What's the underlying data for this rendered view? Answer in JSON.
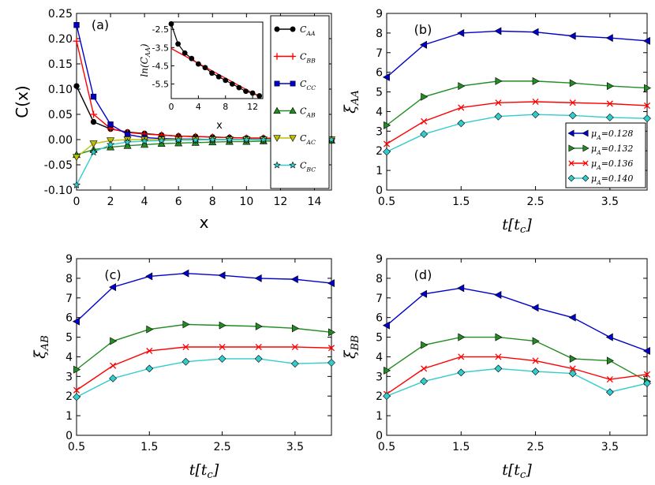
{
  "chart_data": [
    {
      "id": "a",
      "type": "line",
      "panel_label": "(a)",
      "xlabel": "x",
      "ylabel": "C(x)",
      "xlim": [
        0,
        15
      ],
      "ylim": [
        -0.1,
        0.25
      ],
      "xticks": [
        0,
        2,
        4,
        6,
        8,
        10,
        12,
        14
      ],
      "yticks": [
        -0.1,
        -0.05,
        0.0,
        0.05,
        0.1,
        0.15,
        0.2,
        0.25
      ],
      "ytick_labels": [
        "-0.10",
        "-0.05",
        "0.00",
        "0.05",
        "0.10",
        "0.15",
        "0.20",
        "0.25"
      ],
      "x": [
        0,
        1,
        2,
        3,
        4,
        5,
        6,
        7,
        8,
        9,
        10,
        11,
        12,
        13,
        14,
        15
      ],
      "series": [
        {
          "name": "C_AA",
          "color": "#000000",
          "marker": "circle",
          "values": [
            0.106,
            0.035,
            0.021,
            0.015,
            0.012,
            0.009,
            0.007,
            0.006,
            0.005,
            0.004,
            0.003,
            0.003,
            0.002,
            0.002,
            0.002,
            0.001
          ]
        },
        {
          "name": "C_BB",
          "color": "#ff0000",
          "marker": "plus",
          "values": [
            0.195,
            0.05,
            0.022,
            0.014,
            0.011,
            0.009,
            0.007,
            0.006,
            0.005,
            0.004,
            0.003,
            0.003,
            0.002,
            0.002,
            0.002,
            0.001
          ]
        },
        {
          "name": "C_CC",
          "color": "#0000cc",
          "marker": "square",
          "values": [
            0.227,
            0.085,
            0.03,
            0.01,
            0.004,
            0.002,
            0.001,
            0.001,
            0.0,
            0.0,
            0.0,
            0.0,
            0.0,
            0.0,
            0.0,
            0.0
          ]
        },
        {
          "name": "C_AB",
          "color": "#228b22",
          "marker": "triangle-up",
          "values": [
            -0.03,
            -0.02,
            -0.015,
            -0.012,
            -0.01,
            -0.008,
            -0.007,
            -0.006,
            -0.005,
            -0.004,
            -0.004,
            -0.003,
            -0.003,
            -0.002,
            -0.002,
            -0.002
          ]
        },
        {
          "name": "C_AC",
          "color": "#bfbf00",
          "marker": "triangle-down",
          "values": [
            -0.035,
            -0.008,
            -0.002,
            0.0,
            0.0,
            0.0,
            0.0,
            0.0,
            0.0,
            0.0,
            0.0,
            0.0,
            0.0,
            0.0,
            0.0,
            0.0
          ]
        },
        {
          "name": "C_BC",
          "color": "#33cccc",
          "marker": "star",
          "values": [
            -0.09,
            -0.025,
            -0.01,
            -0.005,
            -0.003,
            -0.002,
            -0.001,
            -0.001,
            0.0,
            0.0,
            0.0,
            0.0,
            0.0,
            0.0,
            0.0,
            0.0
          ]
        }
      ],
      "legend": [
        {
          "main": "C",
          "sub": "AA"
        },
        {
          "main": "C",
          "sub": "BB"
        },
        {
          "main": "C",
          "sub": "CC"
        },
        {
          "main": "C",
          "sub": "AB"
        },
        {
          "main": "C",
          "sub": "AC"
        },
        {
          "main": "C",
          "sub": "BC"
        }
      ],
      "legend_position": "top-right",
      "inset": {
        "xlabel": "x",
        "ylabel": "ln(C_AA)",
        "ylabel_text": "ln(C",
        "ylabel_sub": "AA",
        "ylabel_close": ")",
        "xlim": [
          0,
          13.5
        ],
        "ylim": [
          -6.3,
          -2.1
        ],
        "xticks": [
          0,
          4,
          8,
          12
        ],
        "yticks": [
          -2.5,
          -3.5,
          -4.5,
          -5.5
        ],
        "ytick_labels": [
          "-2.5",
          "-3.5",
          "-4.5",
          "-5.5"
        ],
        "data_x": [
          0,
          1,
          2,
          3,
          4,
          5,
          6,
          7,
          8,
          9,
          10,
          11,
          12,
          13
        ],
        "data_y": [
          -2.2,
          -3.3,
          -3.8,
          -4.1,
          -4.4,
          -4.6,
          -4.9,
          -5.1,
          -5.3,
          -5.5,
          -5.7,
          -5.9,
          -6.0,
          -6.15
        ],
        "fit_x": [
          0,
          13
        ],
        "fit_y": [
          -3.55,
          -6.2
        ]
      }
    },
    {
      "id": "b",
      "type": "line",
      "panel_label": "(b)",
      "xlabel": "t[t_c]",
      "ylabel": "ξ_AA",
      "ylabel_main": "ξ",
      "ylabel_sub": "AA",
      "xlim": [
        0.5,
        4.0
      ],
      "ylim": [
        0,
        9
      ],
      "xticks": [
        0.5,
        1.5,
        2.5,
        3.5
      ],
      "xtick_labels": [
        "0.5",
        "1.5",
        "2.5",
        "3.5"
      ],
      "yticks": [
        0,
        1,
        2,
        3,
        4,
        5,
        6,
        7,
        8,
        9
      ],
      "x": [
        0.5,
        1.0,
        1.5,
        2.0,
        2.5,
        3.0,
        3.5,
        4.0
      ],
      "series": [
        {
          "name": "μ_A=0.128",
          "color": "#0000cc",
          "marker": "triangle-left",
          "values": [
            5.75,
            7.4,
            8.0,
            8.1,
            8.05,
            7.85,
            7.75,
            7.6
          ]
        },
        {
          "name": "μ_A=0.132",
          "color": "#228b22",
          "marker": "triangle-right",
          "values": [
            3.3,
            4.75,
            5.3,
            5.55,
            5.55,
            5.45,
            5.3,
            5.2
          ]
        },
        {
          "name": "μ_A=0.136",
          "color": "#ff0000",
          "marker": "x",
          "values": [
            2.35,
            3.5,
            4.2,
            4.45,
            4.5,
            4.45,
            4.4,
            4.3
          ]
        },
        {
          "name": "μ_A=0.140",
          "color": "#33cccc",
          "marker": "diamond",
          "values": [
            1.95,
            2.85,
            3.4,
            3.75,
            3.85,
            3.8,
            3.7,
            3.65
          ]
        }
      ],
      "legend": [
        {
          "main": "μ",
          "sub": "A",
          "rest": "=0.128"
        },
        {
          "main": "μ",
          "sub": "A",
          "rest": "=0.132"
        },
        {
          "main": "μ",
          "sub": "A",
          "rest": "=0.136"
        },
        {
          "main": "μ",
          "sub": "A",
          "rest": "=0.140"
        }
      ],
      "legend_position": "lower-right"
    },
    {
      "id": "c",
      "type": "line",
      "panel_label": "(c)",
      "xlabel": "t[t_c]",
      "ylabel": "ξ_AB",
      "ylabel_main": "ξ",
      "ylabel_sub": "AB",
      "xlim": [
        0.5,
        4.0
      ],
      "ylim": [
        0,
        9
      ],
      "xticks": [
        0.5,
        1.5,
        2.5,
        3.5
      ],
      "xtick_labels": [
        "0.5",
        "1.5",
        "2.5",
        "3.5"
      ],
      "yticks": [
        0,
        1,
        2,
        3,
        4,
        5,
        6,
        7,
        8,
        9
      ],
      "x": [
        0.5,
        1.0,
        1.5,
        2.0,
        2.5,
        3.0,
        3.5,
        4.0
      ],
      "series": [
        {
          "name": "μ_A=0.128",
          "color": "#0000cc",
          "marker": "triangle-left",
          "values": [
            5.8,
            7.55,
            8.1,
            8.25,
            8.15,
            8.0,
            7.95,
            7.75
          ]
        },
        {
          "name": "μ_A=0.132",
          "color": "#228b22",
          "marker": "triangle-right",
          "values": [
            3.35,
            4.8,
            5.4,
            5.65,
            5.6,
            5.55,
            5.45,
            5.25
          ]
        },
        {
          "name": "μ_A=0.136",
          "color": "#ff0000",
          "marker": "x",
          "values": [
            2.3,
            3.55,
            4.3,
            4.5,
            4.5,
            4.5,
            4.5,
            4.45
          ]
        },
        {
          "name": "μ_A=0.140",
          "color": "#33cccc",
          "marker": "diamond",
          "values": [
            1.95,
            2.9,
            3.4,
            3.75,
            3.9,
            3.9,
            3.65,
            3.7
          ]
        }
      ]
    },
    {
      "id": "d",
      "type": "line",
      "panel_label": "(d)",
      "xlabel": "t[t_c]",
      "ylabel": "ξ_BB",
      "ylabel_main": "ξ",
      "ylabel_sub": "BB",
      "xlim": [
        0.5,
        4.0
      ],
      "ylim": [
        0,
        9
      ],
      "xticks": [
        0.5,
        1.5,
        2.5,
        3.5
      ],
      "xtick_labels": [
        "0.5",
        "1.5",
        "2.5",
        "3.5"
      ],
      "yticks": [
        0,
        1,
        2,
        3,
        4,
        5,
        6,
        7,
        8,
        9
      ],
      "x": [
        0.5,
        1.0,
        1.5,
        2.0,
        2.5,
        3.0,
        3.5,
        4.0
      ],
      "series": [
        {
          "name": "μ_A=0.128",
          "color": "#0000cc",
          "marker": "triangle-left",
          "values": [
            5.6,
            7.2,
            7.5,
            7.15,
            6.5,
            6.0,
            5.0,
            4.3
          ]
        },
        {
          "name": "μ_A=0.132",
          "color": "#228b22",
          "marker": "triangle-right",
          "values": [
            3.3,
            4.6,
            5.0,
            5.0,
            4.8,
            3.9,
            3.8,
            2.75
          ]
        },
        {
          "name": "μ_A=0.136",
          "color": "#ff0000",
          "marker": "x",
          "values": [
            2.1,
            3.4,
            4.0,
            4.0,
            3.8,
            3.4,
            2.85,
            3.1
          ]
        },
        {
          "name": "μ_A=0.140",
          "color": "#33cccc",
          "marker": "diamond",
          "values": [
            2.0,
            2.75,
            3.2,
            3.4,
            3.25,
            3.15,
            2.2,
            2.65
          ]
        }
      ]
    }
  ],
  "xlabel_t": {
    "main": "t[t",
    "sub": "c",
    "close": "]"
  }
}
